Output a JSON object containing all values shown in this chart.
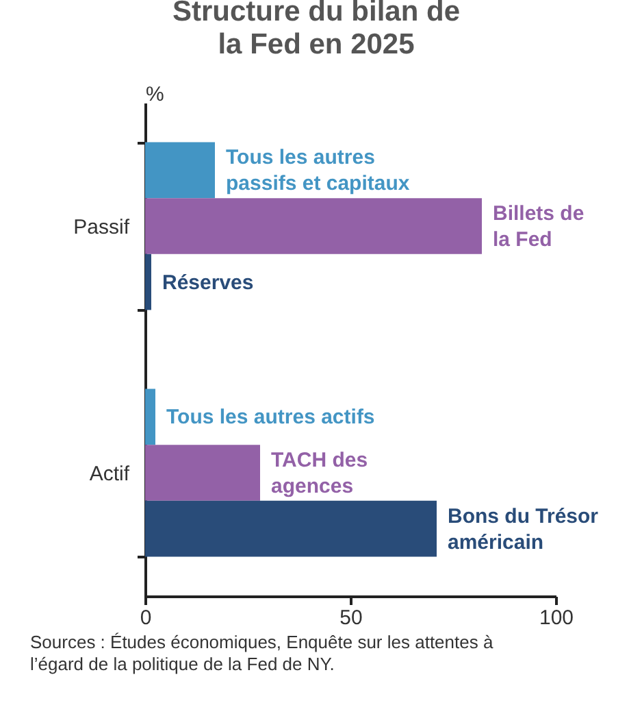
{
  "chart_data": {
    "type": "bar",
    "orientation": "horizontal",
    "title": "Structure du bilan de\nla Fed en 2025",
    "xlabel": "%",
    "categories": [
      "Passif",
      "Actif"
    ],
    "series": [
      {
        "color": "#4395c4",
        "values": [
          17,
          2.5
        ]
      },
      {
        "color": "#9361a7",
        "values": [
          82,
          28
        ]
      },
      {
        "color": "#294c79",
        "values": [
          1.5,
          71
        ]
      }
    ],
    "xlim": [
      0,
      100
    ],
    "xticks": [
      0,
      50,
      100
    ],
    "grid": false,
    "legend": false,
    "annotations": [
      "Tous les autres\npassifs et capitaux",
      "Billets de\nla Fed",
      "Réserves",
      "Tous les autres actifs",
      "TACH des\nagences",
      "Bons du Trésor\naméricain",
      "Sources : Études économiques, Enquête sur les attentes à l’égard de la politique de la Fed de NY."
    ]
  }
}
